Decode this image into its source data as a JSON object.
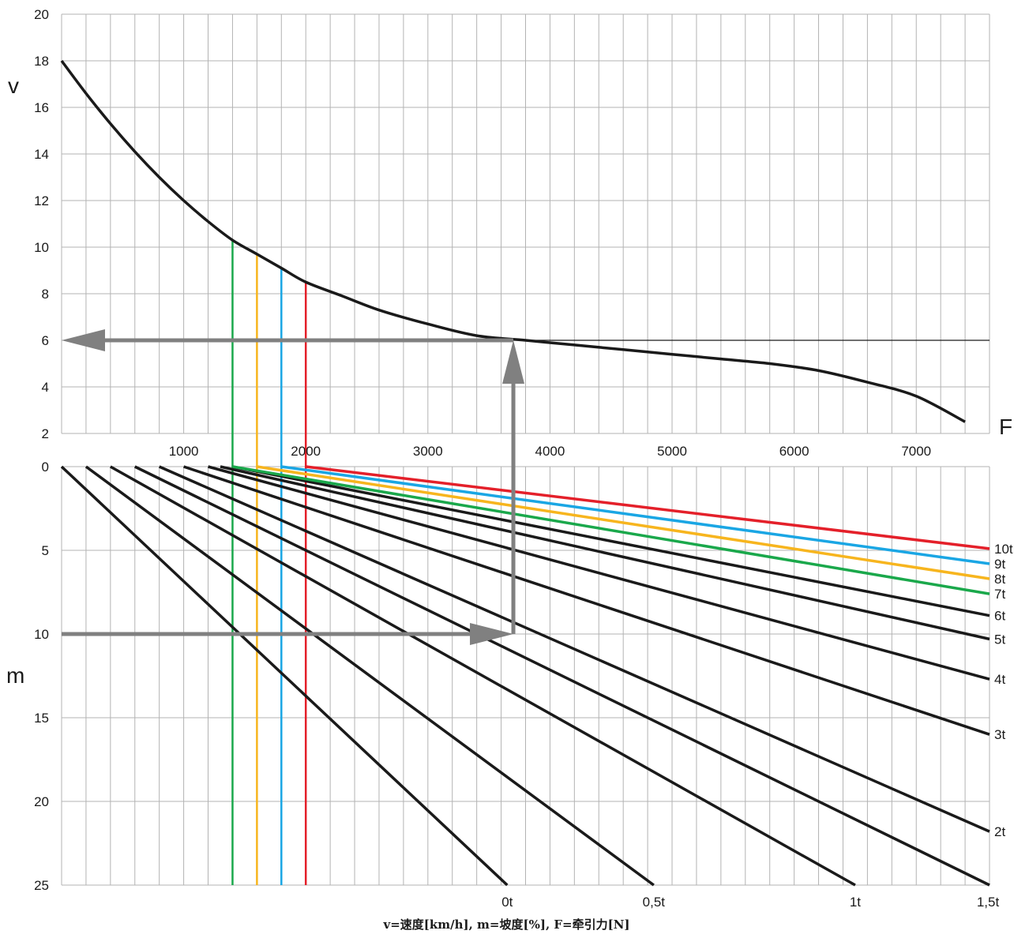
{
  "caption": "v=速度[km/h],  m=坡度[%],  F=牵引力[N]",
  "colors": {
    "grid": "#b3b3b3",
    "curve": "#1a1a1a",
    "arrow": "#808080",
    "green": "#1aa84b",
    "yellow": "#f7b51e",
    "blue": "#1aa6e4",
    "red": "#e4202a"
  },
  "chart_data": [
    {
      "type": "line",
      "xlabel": "F",
      "ylabel": "v",
      "ylim": [
        2,
        20
      ],
      "xlim": [
        0,
        7600
      ],
      "yticks": [
        "2",
        "4",
        "6",
        "8",
        "10",
        "12",
        "14",
        "16",
        "18",
        "20"
      ],
      "xticks": [
        {
          "value": 1000,
          "label": "1000"
        },
        {
          "value": 2000,
          "label": "2000"
        },
        {
          "value": 3000,
          "label": "3000"
        },
        {
          "value": 4000,
          "label": "4000"
        },
        {
          "value": 5000,
          "label": "5000"
        },
        {
          "value": 6000,
          "label": "6000"
        },
        {
          "value": 7000,
          "label": "7000"
        }
      ],
      "grid": true,
      "series": [
        {
          "x": [
            0,
            200,
            400,
            600,
            800,
            1000,
            1200,
            1400,
            1600,
            1800,
            2000,
            2300,
            2600,
            3000,
            3400,
            3800,
            4200,
            4600,
            5000,
            5400,
            5800,
            6200,
            6600,
            7000,
            7400
          ],
          "y": [
            18.0,
            16.6,
            15.3,
            14.1,
            13.0,
            12.0,
            11.1,
            10.3,
            9.7,
            9.1,
            8.5,
            7.9,
            7.3,
            6.7,
            6.2,
            6.0,
            5.8,
            5.6,
            5.4,
            5.2,
            5.0,
            4.7,
            4.2,
            3.6,
            2.5
          ]
        }
      ],
      "reference_line": {
        "y": 6,
        "x_from": 3800,
        "x_to": 7600
      },
      "arrow": {
        "from_x": 3700,
        "from_y": 0,
        "corner_y": 6,
        "to_x": 0
      }
    },
    {
      "type": "line",
      "ylabel": "m",
      "ylim": [
        0,
        25
      ],
      "yticks": [
        "0",
        "5",
        "10",
        "15",
        "20",
        "25"
      ],
      "xticks": [
        {
          "value": 3650,
          "label": "0t"
        },
        {
          "value": 4850,
          "label": "0,5t"
        },
        {
          "value": 6500,
          "label": "1t"
        },
        {
          "value": 7600,
          "label": "1,5t"
        }
      ],
      "grid": true,
      "mass_labels": [
        "10t",
        "9t",
        "8t",
        "7t",
        "6t",
        "5t",
        "4t",
        "3t",
        "2t"
      ],
      "series": [
        {
          "x_start": 0,
          "x_end": 3650,
          "y_end": 25
        },
        {
          "x_start": 200,
          "x_end": 4850,
          "y_end": 25
        },
        {
          "x_start": 400,
          "x_end": 6500,
          "y_end": 25
        },
        {
          "x_start": 600,
          "x_end": 7600,
          "y_end": 25
        },
        {
          "name": "2t",
          "x_start": 800,
          "x_end": 7600,
          "y_end": 21.8
        },
        {
          "name": "3t",
          "x_start": 1000,
          "x_end": 7600,
          "y_end": 16.0
        },
        {
          "name": "4t",
          "x_start": 1200,
          "x_end": 7600,
          "y_end": 12.7
        },
        {
          "name": "5t",
          "x_start": 1300,
          "x_end": 7600,
          "y_end": 10.3
        },
        {
          "name": "6t",
          "x_start": 1400,
          "x_end": 7600,
          "y_end": 8.9
        },
        {
          "name": "7t",
          "x_start": 1400,
          "x_end": 7600,
          "y_end": 7.6,
          "color": "green"
        },
        {
          "name": "8t",
          "x_start": 1600,
          "x_end": 7600,
          "y_end": 6.7,
          "color": "yellow"
        },
        {
          "name": "9t",
          "x_start": 1800,
          "x_end": 7600,
          "y_end": 5.8,
          "color": "blue"
        },
        {
          "name": "10t",
          "x_start": 2000,
          "x_end": 7600,
          "y_end": 4.9,
          "color": "red"
        }
      ],
      "markers": [
        {
          "x": 1400,
          "v": 10.3,
          "color": "green"
        },
        {
          "x": 1600,
          "v": 9.7,
          "color": "yellow"
        },
        {
          "x": 1800,
          "v": 9.1,
          "color": "blue"
        },
        {
          "x": 2000,
          "v": 8.5,
          "color": "red"
        }
      ],
      "arrow": {
        "from_x": 0,
        "y": 10,
        "to_x": 3700
      }
    }
  ]
}
